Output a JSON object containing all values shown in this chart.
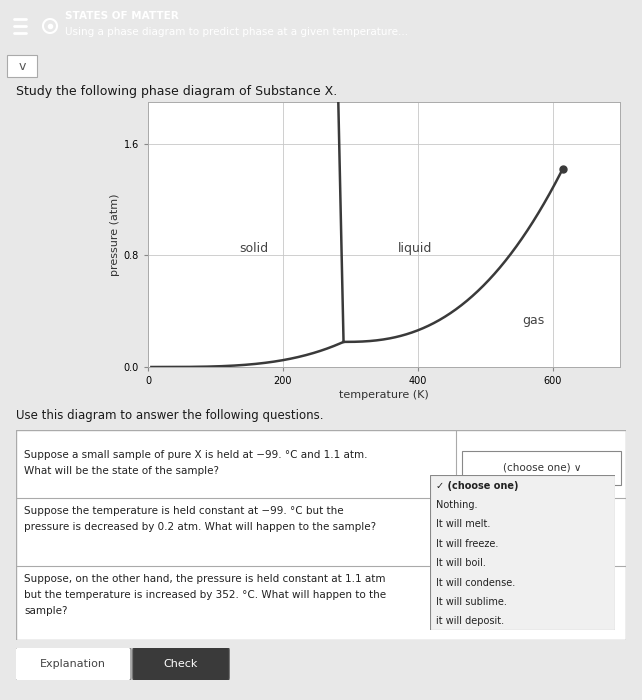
{
  "header_bg": "#4aafb8",
  "header_title": "STATES OF MATTER",
  "header_subtitle": "Using a phase diagram to predict phase at a given temperature...",
  "study_text": "Study the following phase diagram of Substance X.",
  "use_text": "Use this diagram to answer the following questions.",
  "xlabel": "temperature (K)",
  "ylabel": "pressure (atm)",
  "yticks": [
    0,
    0.8,
    1.6
  ],
  "xticks": [
    0,
    200,
    400,
    600
  ],
  "xlim": [
    0,
    700
  ],
  "ylim": [
    0,
    1.9
  ],
  "triple_point": [
    290,
    0.18
  ],
  "critical_point": [
    615,
    1.42
  ],
  "line_color": "#3a3a3a",
  "solid_label": "solid",
  "liquid_label": "liquid",
  "gas_label": "gas",
  "bg_color": "#e8e8e8",
  "plot_bg": "#ffffff",
  "grid_color": "#c8c8c8",
  "q1_text_line1": "Suppose a small sample of pure X is held at −99. °C and 1.1 atm.",
  "q1_text_line2": "What will be the state of the sample?",
  "q1_answer": "(choose one) ∨",
  "q2_text_line1": "Suppose the temperature is held constant at −99. °C but the",
  "q2_text_line2": "pressure is decreased by 0.2 atm. What will happen to the sample?",
  "q3_text_line1": "Suppose, on the other hand, the pressure is held constant at 1.1 atm",
  "q3_text_line2": "but the temperature is increased by 352. °C. What will happen to the",
  "q3_text_line3": "sample?",
  "dropdown_items": [
    "✓ (choose one)",
    "Nothing.",
    "It will melt.",
    "It will freeze.",
    "It will boil.",
    "It will condense.",
    "It will sublime.",
    "it will deposit."
  ],
  "btn1_text": "Explanation",
  "btn2_text": "Check"
}
